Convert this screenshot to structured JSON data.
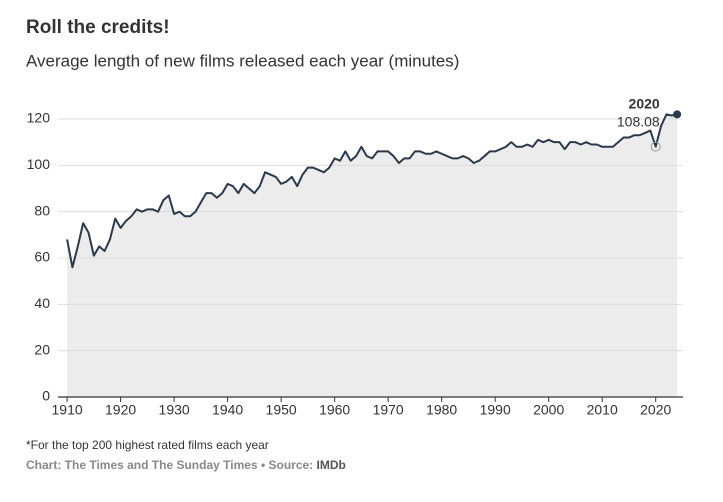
{
  "chart_data": {
    "type": "area",
    "title": "Roll the credits!",
    "subtitle": "Average length of new films released each year (minutes)",
    "x": [
      1910,
      1911,
      1912,
      1913,
      1914,
      1915,
      1916,
      1917,
      1918,
      1919,
      1920,
      1921,
      1922,
      1923,
      1924,
      1925,
      1926,
      1927,
      1928,
      1929,
      1930,
      1931,
      1932,
      1933,
      1934,
      1935,
      1936,
      1937,
      1938,
      1939,
      1940,
      1941,
      1942,
      1943,
      1944,
      1945,
      1946,
      1947,
      1948,
      1949,
      1950,
      1951,
      1952,
      1953,
      1954,
      1955,
      1956,
      1957,
      1958,
      1959,
      1960,
      1961,
      1962,
      1963,
      1964,
      1965,
      1966,
      1967,
      1968,
      1969,
      1970,
      1971,
      1972,
      1973,
      1974,
      1975,
      1976,
      1977,
      1978,
      1979,
      1980,
      1981,
      1982,
      1983,
      1984,
      1985,
      1986,
      1987,
      1988,
      1989,
      1990,
      1991,
      1992,
      1993,
      1994,
      1995,
      1996,
      1997,
      1998,
      1999,
      2000,
      2001,
      2002,
      2003,
      2004,
      2005,
      2006,
      2007,
      2008,
      2009,
      2010,
      2011,
      2012,
      2013,
      2014,
      2015,
      2016,
      2017,
      2018,
      2019,
      2020,
      2021,
      2022,
      2023,
      2024
    ],
    "series": [
      {
        "color": "#2b3a4a",
        "fill": "#ececec",
        "values": [
          68,
          56,
          65,
          75,
          71,
          61,
          65,
          63,
          68,
          77,
          73,
          76,
          78,
          81,
          80,
          81,
          81,
          80,
          85,
          87,
          79,
          80,
          78,
          78,
          80,
          84,
          88,
          88,
          86,
          88,
          92,
          91,
          88,
          92,
          90,
          88,
          91,
          97,
          96,
          95,
          92,
          93,
          95,
          91,
          96,
          99,
          99,
          98,
          97,
          99,
          103,
          102,
          106,
          102,
          104,
          108,
          104,
          103,
          106,
          106,
          106,
          104,
          101,
          103,
          103,
          106,
          106,
          105,
          105,
          106,
          105,
          104,
          103,
          103,
          104,
          103,
          101,
          102,
          104,
          106,
          106,
          107,
          108,
          110,
          108,
          108,
          109,
          108,
          111,
          110,
          111,
          110,
          110,
          107,
          110,
          110,
          109,
          110,
          109,
          109,
          108,
          108,
          108,
          110,
          112,
          112,
          113,
          113,
          114,
          115,
          108.08,
          117,
          122,
          121.5,
          122
        ]
      }
    ],
    "annotation": {
      "x": 2020,
      "value": 108.08
    },
    "xlim": [
      1908.3,
      2025.1
    ],
    "ylim": [
      0,
      120
    ],
    "xticks": [
      1910,
      1920,
      1930,
      1940,
      1950,
      1960,
      1970,
      1980,
      1990,
      2000,
      2010,
      2020
    ],
    "yticks": [
      0,
      20,
      40,
      60,
      80,
      100,
      120
    ],
    "grid": true
  },
  "footnote": "*For the top 200 highest rated films each year",
  "credit": "Chart: The Times and The Sunday Times • Source:",
  "source": "IMDb"
}
